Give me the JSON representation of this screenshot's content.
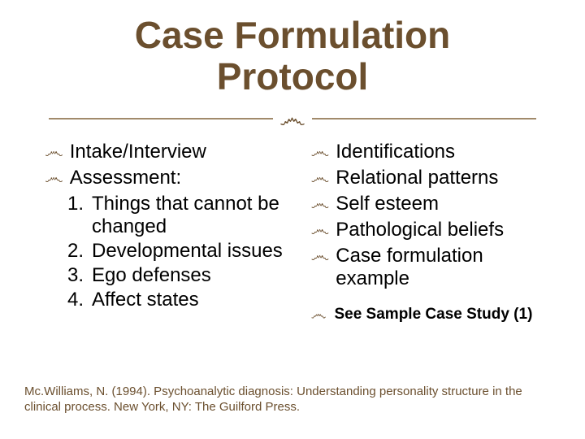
{
  "title_line1": "Case Formulation",
  "title_line2": "Protocol",
  "flourish_glyph": "་",
  "bullet_glyph": "་",
  "colors": {
    "title": "#6b4f2e",
    "divider": "#a18a6b",
    "bullet": "#6b4f2e",
    "body": "#000000",
    "citation": "#6b4f2e",
    "background": "#ffffff"
  },
  "fontsize": {
    "title": 46,
    "body": 24,
    "small": 19,
    "citation": 15
  },
  "left": {
    "items": [
      {
        "text": "Intake/Interview"
      },
      {
        "text": "Assessment:"
      }
    ],
    "numbered": [
      {
        "n": "1.",
        "text": "Things that cannot be changed"
      },
      {
        "n": "2.",
        "text": "Developmental issues"
      },
      {
        "n": "3.",
        "text": "Ego defenses"
      },
      {
        "n": "4.",
        "text": "Affect states"
      }
    ]
  },
  "right": {
    "items": [
      {
        "text": "Identifications"
      },
      {
        "text": "Relational patterns"
      },
      {
        "text": "Self esteem"
      },
      {
        "text": "Pathological beliefs"
      },
      {
        "text": "Case formulation example"
      }
    ],
    "small": [
      {
        "text": "See Sample Case Study (1)"
      }
    ]
  },
  "citation": "Mc.Williams, N. (1994). Psychoanalytic diagnosis: Understanding personality structure in the clinical process. New York, NY: The Guilford Press."
}
